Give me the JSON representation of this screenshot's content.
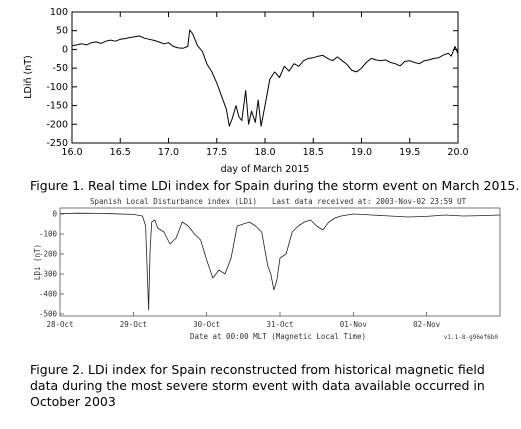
{
  "figure1": {
    "caption": "Figure 1. Real time LDi index for Spain during the storm event on March 2015."
  },
  "figure2": {
    "caption": "Figure 2. LDi index for Spain reconstructed from historical magnetic field data during the most severe storm event with data available occurred in October 2003"
  },
  "chart_data": [
    {
      "type": "line",
      "title": "",
      "xlabel": "day of March 2015",
      "ylabel": "LDiñ (nT)",
      "xlim": [
        16.0,
        20.0
      ],
      "ylim": [
        -250,
        100
      ],
      "xticks": [
        "16.0",
        "16.5",
        "17.0",
        "17.5",
        "18.0",
        "18.5",
        "19.0",
        "19.5",
        "20.0"
      ],
      "yticks": [
        "100",
        "50",
        "0",
        "-50",
        "-100",
        "-150",
        "-200",
        "-250"
      ],
      "grid": false,
      "series": [
        {
          "x": [
            16.0,
            16.05,
            16.1,
            16.15,
            16.2,
            16.25,
            16.3,
            16.35,
            16.4,
            16.45,
            16.5,
            16.55,
            16.6,
            16.65,
            16.7,
            16.75,
            16.8,
            16.85,
            16.9,
            16.95,
            17.0,
            17.05,
            17.1,
            17.15,
            17.2,
            17.22,
            17.25,
            17.3,
            17.35,
            17.4,
            17.45,
            17.5,
            17.55,
            17.6,
            17.63,
            17.66,
            17.7,
            17.73,
            17.76,
            17.8,
            17.83,
            17.86,
            17.9,
            17.93,
            17.96,
            18.0,
            18.05,
            18.1,
            18.15,
            18.2,
            18.25,
            18.3,
            18.35,
            18.4,
            18.45,
            18.5,
            18.55,
            18.6,
            18.65,
            18.7,
            18.75,
            18.8,
            18.85,
            18.9,
            18.95,
            19.0,
            19.05,
            19.1,
            19.15,
            19.2,
            19.25,
            19.3,
            19.35,
            19.4,
            19.45,
            19.5,
            19.55,
            19.6,
            19.65,
            19.7,
            19.75,
            19.8,
            19.85,
            19.9,
            19.93,
            19.95,
            19.97,
            20.0
          ],
          "y": [
            10,
            12,
            15,
            12,
            18,
            20,
            16,
            22,
            25,
            22,
            27,
            29,
            32,
            34,
            36,
            30,
            27,
            24,
            20,
            15,
            18,
            8,
            4,
            3,
            8,
            52,
            42,
            10,
            -5,
            -40,
            -60,
            -90,
            -125,
            -160,
            -205,
            -185,
            -150,
            -180,
            -190,
            -110,
            -200,
            -165,
            -195,
            -135,
            -205,
            -150,
            -80,
            -60,
            -75,
            -45,
            -58,
            -38,
            -45,
            -30,
            -24,
            -22,
            -18,
            -16,
            -24,
            -30,
            -20,
            -30,
            -40,
            -56,
            -60,
            -50,
            -35,
            -24,
            -28,
            -30,
            -28,
            -35,
            -38,
            -44,
            -32,
            -30,
            -35,
            -38,
            -30,
            -28,
            -24,
            -22,
            -15,
            -10,
            -18,
            -5,
            8,
            -12
          ]
        }
      ]
    },
    {
      "type": "line",
      "title": "Spanish Local Disturbance index (LDi)",
      "annotation": "Last data received at: 2003-Nov-02  23:59 UT",
      "version": "v1.1-8-g96ef6b0",
      "xlabel": "Date at 00:00 MLT (Magnetic Local Time)",
      "ylabel": "LDi (nT)",
      "xlim": [
        "2003-10-28",
        "2003-11-03"
      ],
      "ylim": [
        -510,
        30
      ],
      "xticks": [
        "28-Oct",
        "29-Oct",
        "30-Oct",
        "31-Oct",
        "01-Nov",
        "02-Nov"
      ],
      "yticks": [
        "0",
        "-100",
        "-200",
        "-300",
        "-400",
        "-500"
      ],
      "grid": false,
      "series": [
        {
          "x": [
            "2003-10-28 00:00",
            "2003-10-28 06:00",
            "2003-10-28 12:00",
            "2003-10-28 18:00",
            "2003-10-29 00:00",
            "2003-10-29 03:00",
            "2003-10-29 04:00",
            "2003-10-29 05:00",
            "2003-10-29 05:30",
            "2003-10-29 06:00",
            "2003-10-29 07:00",
            "2003-10-29 08:00",
            "2003-10-29 10:00",
            "2003-10-29 12:00",
            "2003-10-29 14:00",
            "2003-10-29 16:00",
            "2003-10-29 18:00",
            "2003-10-29 20:00",
            "2003-10-29 22:00",
            "2003-10-30 00:00",
            "2003-10-30 02:00",
            "2003-10-30 04:00",
            "2003-10-30 06:00",
            "2003-10-30 08:00",
            "2003-10-30 10:00",
            "2003-10-30 12:00",
            "2003-10-30 14:00",
            "2003-10-30 16:00",
            "2003-10-30 18:00",
            "2003-10-30 20:00",
            "2003-10-30 21:00",
            "2003-10-30 22:00",
            "2003-10-30 23:00",
            "2003-10-31 00:00",
            "2003-10-31 02:00",
            "2003-10-31 04:00",
            "2003-10-31 06:00",
            "2003-10-31 08:00",
            "2003-10-31 10:00",
            "2003-10-31 12:00",
            "2003-10-31 14:00",
            "2003-10-31 16:00",
            "2003-10-31 18:00",
            "2003-10-31 20:00",
            "2003-11-01 00:00",
            "2003-11-01 06:00",
            "2003-11-01 12:00",
            "2003-11-01 18:00",
            "2003-11-02 00:00",
            "2003-11-02 06:00",
            "2003-11-02 12:00",
            "2003-11-02 18:00",
            "2003-11-02 23:59"
          ],
          "y": [
            2,
            4,
            3,
            1,
            -2,
            -10,
            -60,
            -480,
            -180,
            -40,
            -30,
            -70,
            -90,
            -150,
            -120,
            -40,
            -60,
            -100,
            -130,
            -230,
            -320,
            -280,
            -300,
            -220,
            -60,
            -50,
            -40,
            -60,
            -90,
            -260,
            -300,
            -380,
            -330,
            -220,
            -200,
            -90,
            -60,
            -40,
            -30,
            -60,
            -80,
            -40,
            -20,
            -10,
            0,
            -5,
            -10,
            -15,
            -12,
            -5,
            -10,
            -8,
            -5
          ]
        }
      ]
    }
  ]
}
